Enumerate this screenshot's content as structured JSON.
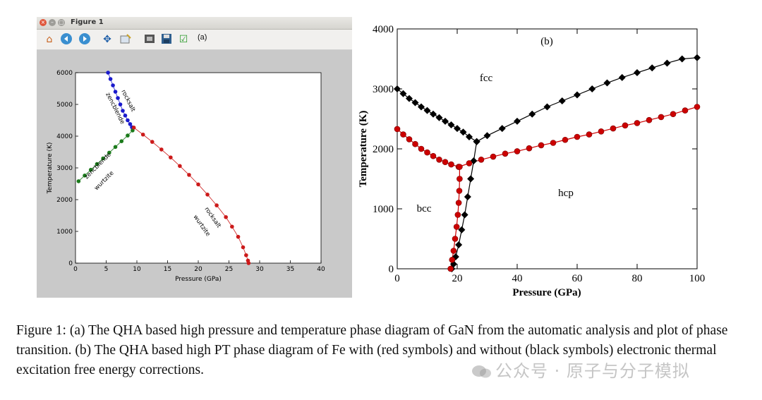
{
  "figure_a": {
    "window_title": "Figure 1",
    "panel_label": "(a)",
    "toolbar_icons": [
      "home-icon",
      "back-icon",
      "forward-icon",
      "pan-icon",
      "configure-subplots-icon",
      "zoom-icon",
      "save-icon",
      "check-icon"
    ]
  },
  "caption": {
    "text": "Figure 1: (a) The QHA based high pressure and temperature phase diagram of GaN from the automatic analysis and plot of phase transition. (b) The QHA based high PT phase diagram of Fe with (red symbols) and without (black symbols) electronic thermal excitation free energy corrections."
  },
  "watermark": {
    "text": "公众号 · 原子与分子模拟"
  },
  "chart_data": [
    {
      "type": "scatter",
      "panel": "(a)",
      "xlabel": "Pressure (GPa)",
      "ylabel": "Temperature (K)",
      "xlim": [
        0,
        40
      ],
      "ylim": [
        0,
        6000
      ],
      "xticks": [
        0,
        5,
        10,
        15,
        20,
        25,
        30,
        35,
        40
      ],
      "yticks": [
        0,
        1000,
        2000,
        3000,
        4000,
        5000,
        6000
      ],
      "annotations": [
        "rocksalt",
        "zencblende",
        "zencblende",
        "wurtzite",
        "rocksalt",
        "wurtzite"
      ],
      "series": [
        {
          "color": "#1a1acc",
          "x": [
            5.3,
            5.7,
            6.1,
            6.5,
            6.9,
            7.3,
            7.7,
            8.1,
            8.5,
            8.9,
            9.2
          ],
          "y": [
            6000,
            5800,
            5600,
            5400,
            5200,
            5000,
            4800,
            4650,
            4500,
            4380,
            4280
          ]
        },
        {
          "color": "#1b7a1b",
          "x": [
            0.5,
            1.5,
            2.5,
            3.5,
            4.5,
            5.5,
            6.5,
            7.5,
            8.5,
            9.3
          ],
          "y": [
            2580,
            2760,
            2940,
            3120,
            3300,
            3480,
            3660,
            3840,
            4020,
            4180
          ]
        },
        {
          "color": "#cc1a1a",
          "x": [
            9.5,
            11,
            12.5,
            14,
            15.5,
            17,
            18.5,
            20,
            21.5,
            23,
            24.5,
            25.5,
            26.5,
            27.3,
            27.8,
            28.1,
            28.2
          ],
          "y": [
            4270,
            4050,
            3820,
            3580,
            3330,
            3060,
            2780,
            2480,
            2160,
            1820,
            1450,
            1150,
            830,
            500,
            250,
            80,
            0
          ]
        }
      ]
    },
    {
      "type": "line",
      "panel": "(b)",
      "xlabel": "Pressure (GPa)",
      "ylabel": "Temperature (K)",
      "xlim": [
        0,
        100
      ],
      "ylim": [
        0,
        4000
      ],
      "xticks": [
        0,
        20,
        40,
        60,
        80,
        100
      ],
      "yticks": [
        0,
        1000,
        2000,
        3000,
        4000
      ],
      "region_labels": [
        "fcc",
        "bcc",
        "hcp"
      ],
      "series": [
        {
          "color": "#000000",
          "marker": "diamond",
          "x": [
            0,
            2,
            4,
            6,
            8,
            10,
            12,
            14,
            16,
            18,
            20,
            22,
            24,
            26.5
          ],
          "y": [
            3000,
            2920,
            2840,
            2770,
            2700,
            2640,
            2580,
            2520,
            2460,
            2400,
            2340,
            2280,
            2200,
            2120
          ]
        },
        {
          "color": "#000000",
          "marker": "diamond",
          "x": [
            26.5,
            30,
            35,
            40,
            45,
            50,
            55,
            60,
            65,
            70,
            75,
            80,
            85,
            90,
            95,
            100
          ],
          "y": [
            2120,
            2220,
            2340,
            2460,
            2580,
            2700,
            2800,
            2900,
            3000,
            3100,
            3190,
            3270,
            3350,
            3430,
            3500,
            3520
          ]
        },
        {
          "color": "#000000",
          "marker": "diamond",
          "x": [
            26.5,
            25.5,
            24.5,
            23.5,
            22.5,
            21.5,
            20.5,
            19.5,
            18.8,
            18.2
          ],
          "y": [
            2120,
            1800,
            1500,
            1200,
            900,
            650,
            400,
            200,
            80,
            0
          ]
        },
        {
          "color": "#cc0000",
          "marker": "circle",
          "x": [
            0,
            2,
            4,
            6,
            8,
            10,
            12,
            14,
            16,
            18,
            20.5
          ],
          "y": [
            2330,
            2240,
            2160,
            2080,
            2000,
            1940,
            1880,
            1820,
            1780,
            1740,
            1700
          ]
        },
        {
          "color": "#cc0000",
          "marker": "circle",
          "x": [
            20.5,
            24,
            28,
            32,
            36,
            40,
            44,
            48,
            52,
            56,
            60,
            64,
            68,
            72,
            76,
            80,
            84,
            88,
            92,
            96,
            100
          ],
          "y": [
            1700,
            1760,
            1820,
            1870,
            1920,
            1960,
            2010,
            2060,
            2100,
            2150,
            2200,
            2240,
            2290,
            2340,
            2390,
            2430,
            2480,
            2530,
            2580,
            2640,
            2700
          ]
        },
        {
          "color": "#cc0000",
          "marker": "circle",
          "x": [
            20.8,
            20.8,
            20.7,
            20.5,
            20.2,
            19.8,
            19.3,
            18.8,
            18.3,
            17.8
          ],
          "y": [
            1700,
            1500,
            1300,
            1100,
            900,
            700,
            500,
            300,
            150,
            0
          ]
        }
      ]
    }
  ]
}
